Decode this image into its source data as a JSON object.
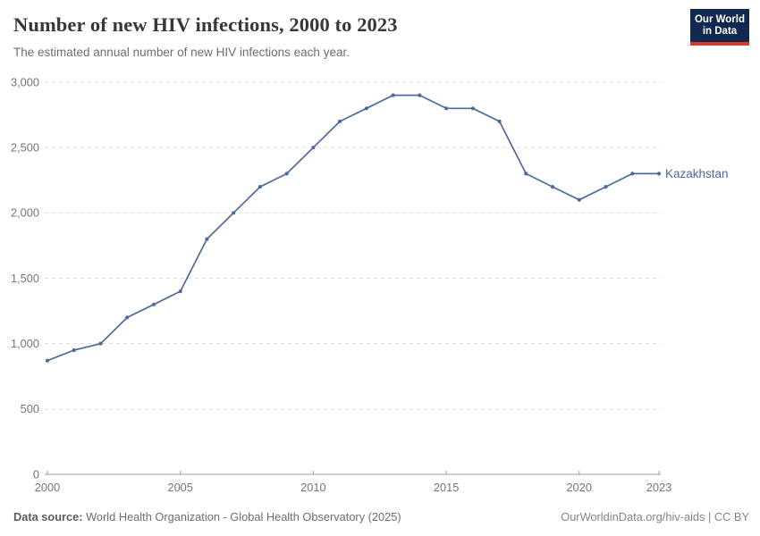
{
  "header": {
    "title": "Number of new HIV infections, 2000 to 2023",
    "subtitle": "The estimated annual number of new HIV infections each year.",
    "logo": {
      "line1": "Our World",
      "line2": "in Data",
      "bg_color": "#12294f",
      "accent_color": "#d93a32"
    }
  },
  "chart_data": {
    "type": "line",
    "title": "Number of new HIV infections, 2000 to 2023",
    "xlabel": "",
    "ylabel": "",
    "x": [
      2000,
      2001,
      2002,
      2003,
      2004,
      2005,
      2006,
      2007,
      2008,
      2009,
      2010,
      2011,
      2012,
      2013,
      2014,
      2015,
      2016,
      2017,
      2018,
      2019,
      2020,
      2021,
      2022,
      2023
    ],
    "series": [
      {
        "name": "Kazakhstan",
        "color": "#4c6a9c",
        "values": [
          870,
          950,
          1000,
          1200,
          1300,
          1400,
          1800,
          2000,
          2200,
          2300,
          2500,
          2700,
          2800,
          2900,
          2900,
          2800,
          2800,
          2700,
          2300,
          2200,
          2100,
          2200,
          2300,
          2300
        ]
      }
    ],
    "xlim": [
      2000,
      2023
    ],
    "ylim": [
      0,
      3000
    ],
    "yticks": [
      0,
      500,
      1000,
      1500,
      2000,
      2500,
      3000
    ],
    "ytick_labels": [
      "0",
      "500",
      "1,000",
      "1,500",
      "2,000",
      "2,500",
      "3,000"
    ],
    "xticks": [
      2000,
      2005,
      2010,
      2015,
      2020,
      2023
    ],
    "xtick_labels": [
      "2000",
      "2005",
      "2010",
      "2015",
      "2020",
      "2023"
    ],
    "grid": "horizontal-dashed",
    "legend_position": "end-of-line",
    "colors": {
      "grid": "#dcdcdc",
      "axis": "#9e9e9e",
      "tick_label": "#757575"
    }
  },
  "footer": {
    "datasource_label": "Data source:",
    "datasource_text": " World Health Organization - Global Health Observatory (2025)",
    "link_text": "OurWorldinData.org/hiv-aids | CC BY"
  }
}
